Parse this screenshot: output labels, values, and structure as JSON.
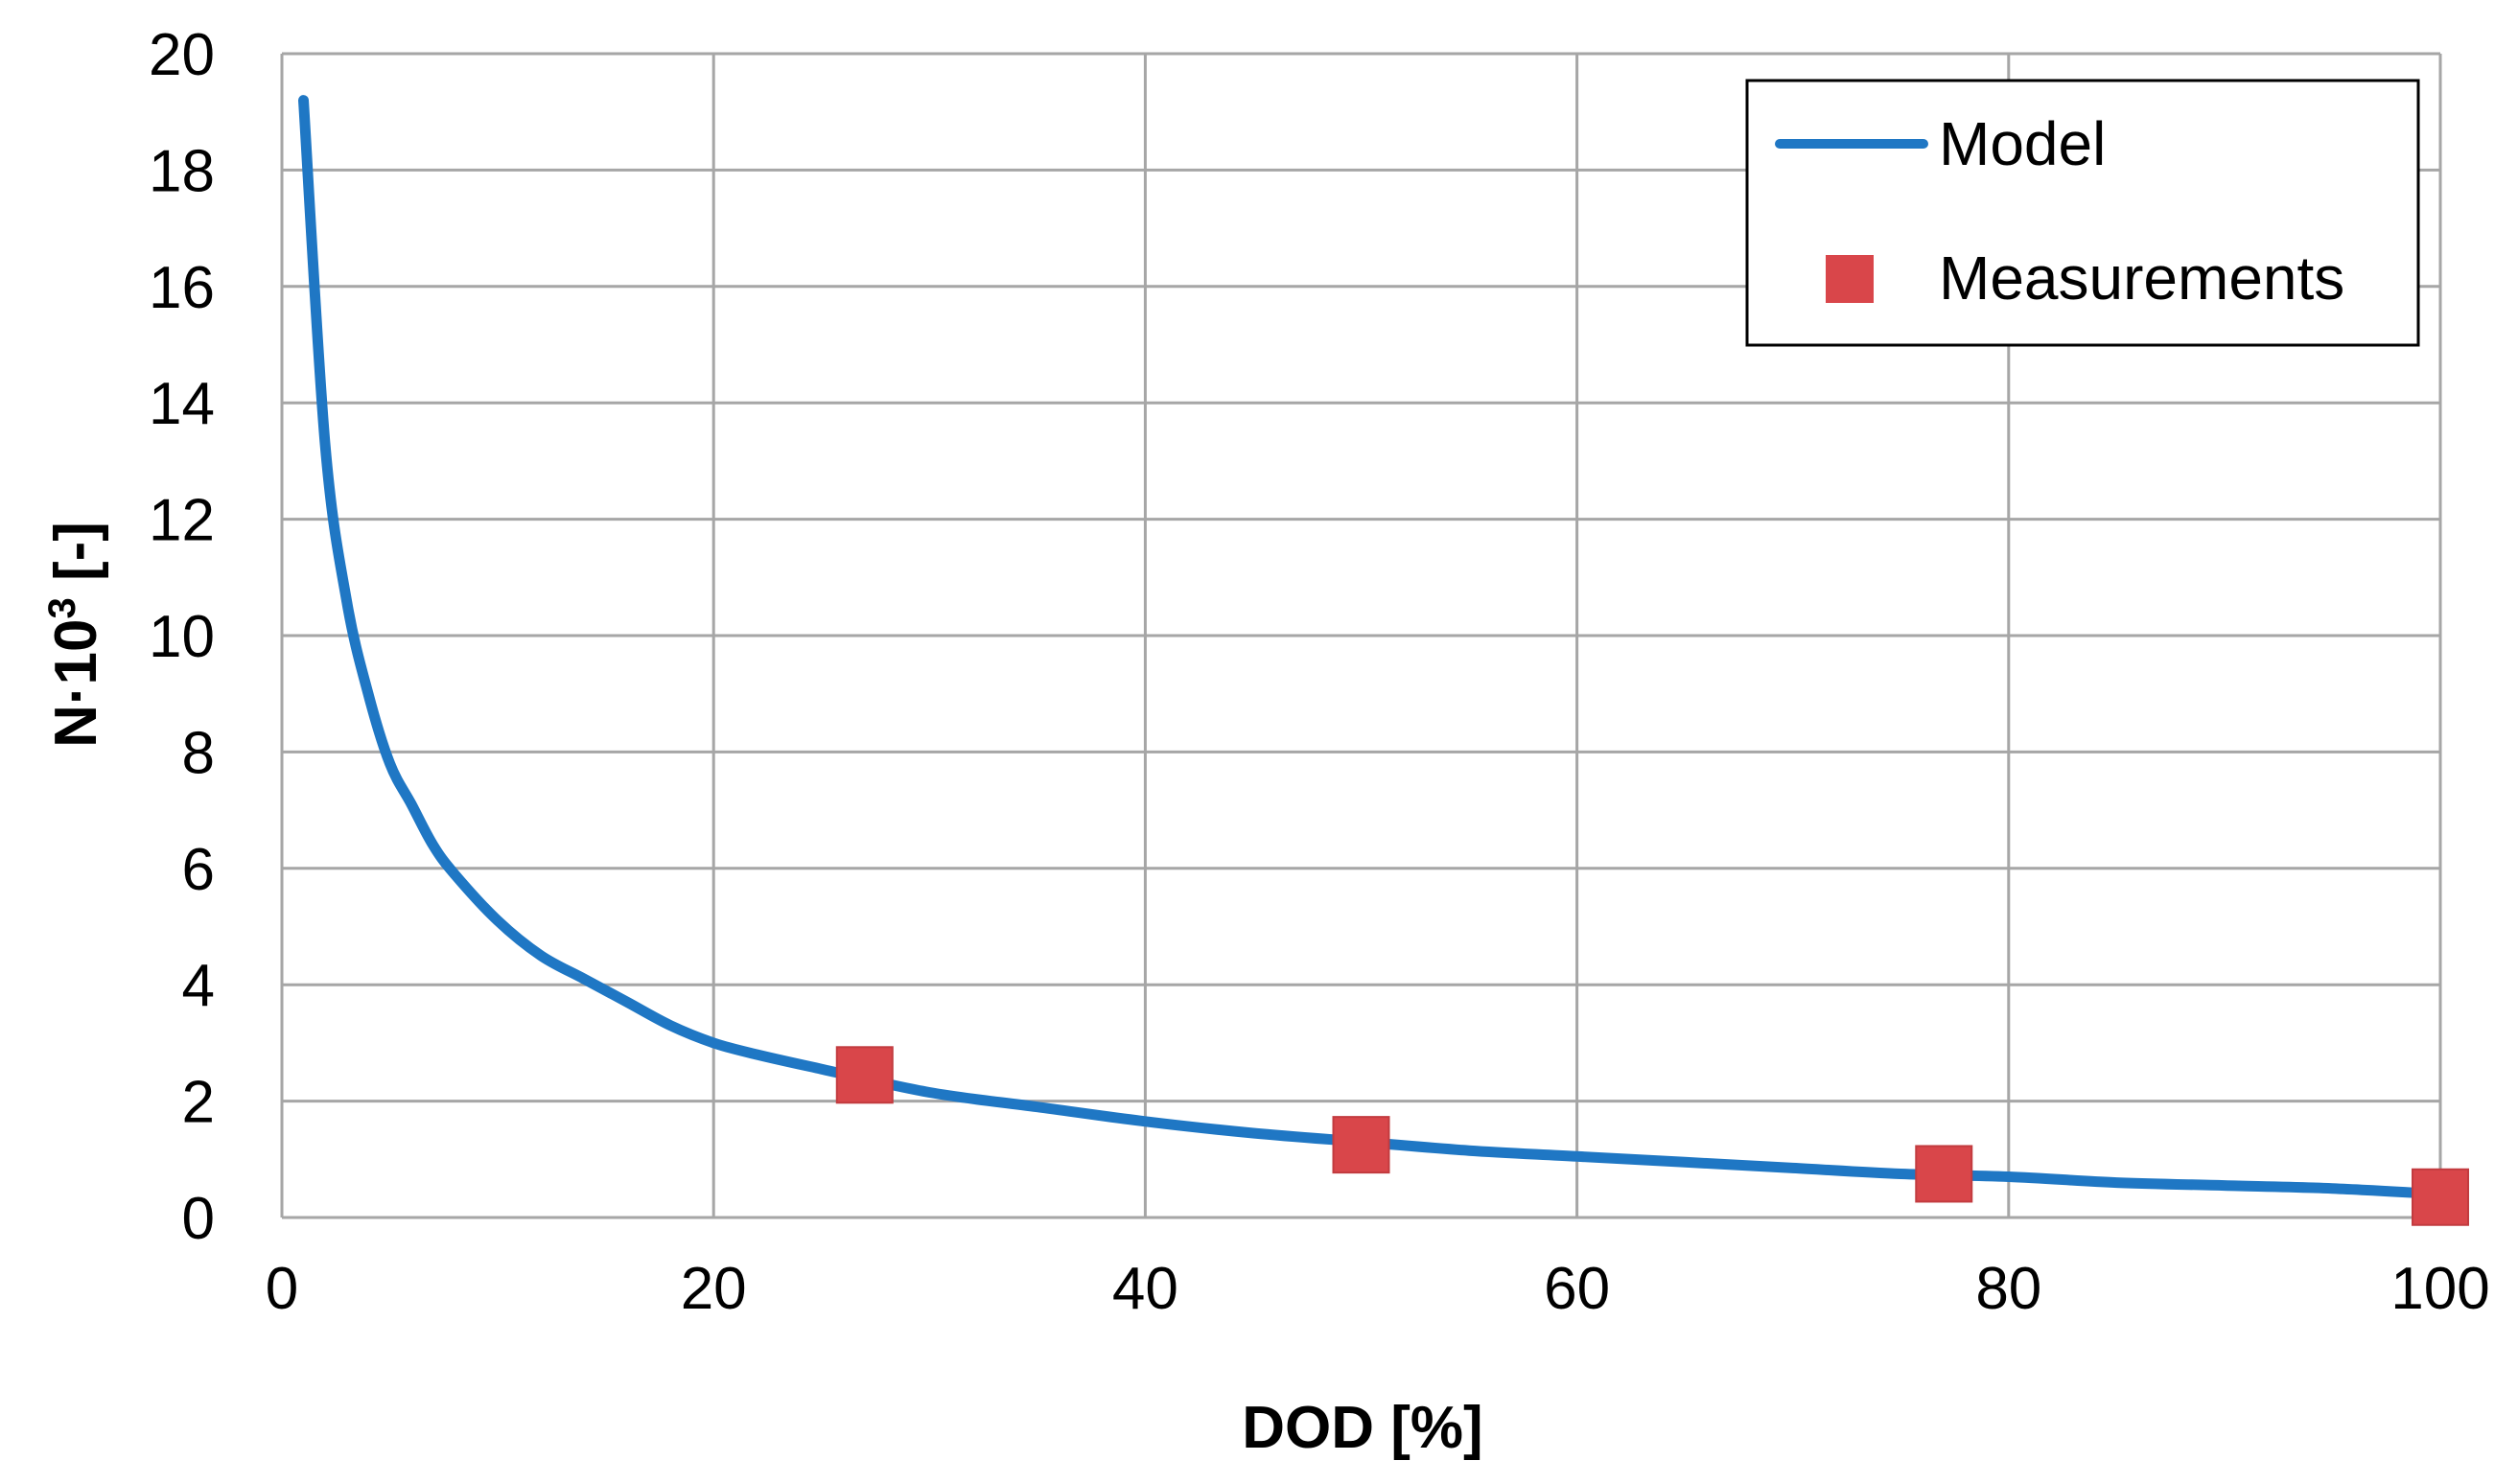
{
  "chart_data": {
    "type": "line",
    "title": "",
    "xlabel": "DOD [%]",
    "ylabel_parts": {
      "base": "N·10",
      "superscript": "3",
      "unit": " [-]"
    },
    "xlim": [
      0,
      100
    ],
    "ylim": [
      0,
      20
    ],
    "xticks": [
      0,
      20,
      40,
      60,
      80,
      100
    ],
    "yticks": [
      0,
      2,
      4,
      6,
      8,
      10,
      12,
      14,
      16,
      18,
      20
    ],
    "grid": true,
    "legend_position": "top-right",
    "series": [
      {
        "name": "Model",
        "kind": "line",
        "color": "#1f77c4",
        "x": [
          1,
          2,
          3,
          4,
          5,
          6,
          7,
          8,
          10,
          12,
          14,
          16,
          18,
          20,
          22,
          25,
          30,
          35,
          40,
          45,
          50,
          55,
          60,
          65,
          70,
          75,
          80,
          85,
          90,
          95,
          100
        ],
        "y": [
          19.2,
          13.3,
          10.6,
          9.0,
          7.8,
          7.1,
          6.4,
          5.9,
          5.1,
          4.5,
          4.1,
          3.7,
          3.3,
          3.0,
          2.8,
          2.55,
          2.15,
          1.9,
          1.65,
          1.45,
          1.3,
          1.15,
          1.05,
          0.95,
          0.85,
          0.75,
          0.7,
          0.6,
          0.55,
          0.5,
          0.4
        ]
      },
      {
        "name": "Measurements",
        "kind": "scatter",
        "marker": "square",
        "color": "#d9464a",
        "x": [
          27,
          50,
          77,
          100
        ],
        "y": [
          2.45,
          1.25,
          0.75,
          0.35
        ]
      }
    ]
  }
}
